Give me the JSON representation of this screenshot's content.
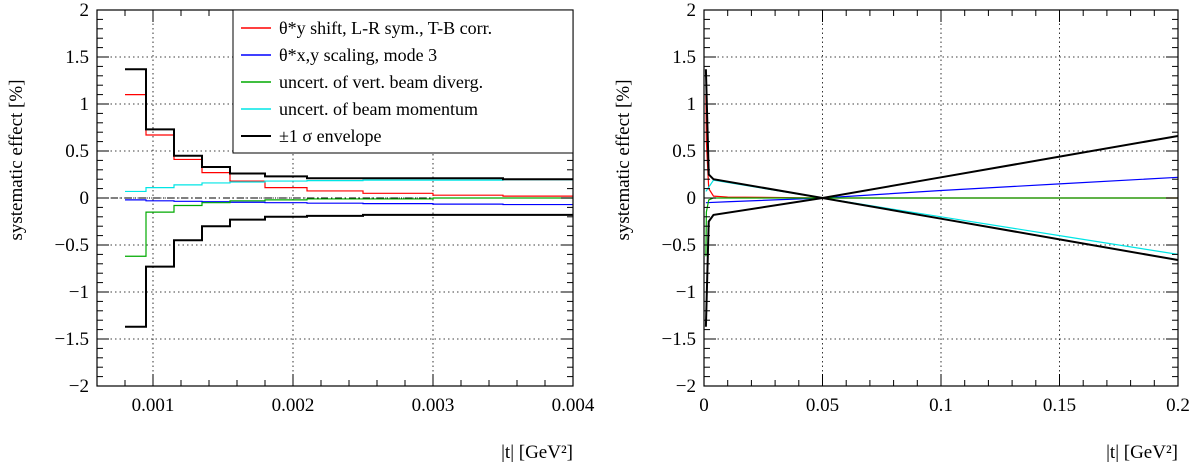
{
  "chart_data": [
    {
      "type": "line",
      "step": true,
      "grid": true,
      "ylabel": "systematic effect    [%]",
      "xlabel": "|t|    [GeV²]",
      "xlim": [
        0.0006,
        0.004
      ],
      "ylim": [
        -2,
        2
      ],
      "xticks": [
        "0.001",
        "0.002",
        "0.003",
        "0.004"
      ],
      "yticks": [
        "−2",
        "−1.5",
        "−1",
        "−0.5",
        "0",
        "0.5",
        "1",
        "1.5",
        "2"
      ],
      "legend_position": "top-right",
      "series": [
        {
          "name": "θ*y shift, L-R sym., T-B corr.",
          "color": "#ff0000",
          "x": [
            0.0008,
            0.00095,
            0.00115,
            0.00135,
            0.00155,
            0.0018,
            0.0021,
            0.0025,
            0.003,
            0.0035,
            0.004
          ],
          "y": [
            1.1,
            0.67,
            0.41,
            0.27,
            0.18,
            0.11,
            0.075,
            0.05,
            0.03,
            0.02,
            0.02
          ]
        },
        {
          "name": "θ*x,y scaling, mode 3",
          "color": "#0000ff",
          "x": [
            0.0008,
            0.00095,
            0.00115,
            0.00135,
            0.00155,
            0.0018,
            0.0021,
            0.0025,
            0.003,
            0.0035,
            0.004
          ],
          "y": [
            -0.02,
            -0.03,
            -0.035,
            -0.04,
            -0.045,
            -0.05,
            -0.055,
            -0.06,
            -0.065,
            -0.07,
            -0.07
          ]
        },
        {
          "name": "uncert. of vert. beam diverg.",
          "color": "#00aa00",
          "x": [
            0.0008,
            0.00095,
            0.00115,
            0.00135,
            0.00155,
            0.0018,
            0.0021,
            0.0025,
            0.003,
            0.0035,
            0.004
          ],
          "y": [
            -0.62,
            -0.15,
            -0.08,
            -0.05,
            -0.03,
            -0.02,
            -0.01,
            -0.01,
            0.0,
            0.0,
            0.0
          ]
        },
        {
          "name": "uncert. of beam momentum",
          "color": "#00e5e5",
          "x": [
            0.0008,
            0.00095,
            0.00115,
            0.00135,
            0.00155,
            0.0018,
            0.0021,
            0.0025,
            0.003,
            0.0035,
            0.004
          ],
          "y": [
            0.07,
            0.11,
            0.14,
            0.16,
            0.17,
            0.18,
            0.185,
            0.19,
            0.19,
            0.195,
            0.195
          ]
        },
        {
          "name": "±1 σ envelope",
          "color": "#000000",
          "x": [
            0.0008,
            0.00095,
            0.00115,
            0.00135,
            0.00155,
            0.0018,
            0.0021,
            0.0025,
            0.003,
            0.0035,
            0.004
          ],
          "y": [
            1.37,
            0.73,
            0.45,
            0.33,
            0.26,
            0.23,
            0.21,
            0.21,
            0.21,
            0.2,
            0.2
          ],
          "y_lower": [
            -1.37,
            -0.73,
            -0.45,
            -0.3,
            -0.23,
            -0.2,
            -0.19,
            -0.18,
            -0.18,
            -0.18,
            -0.18
          ]
        }
      ]
    },
    {
      "type": "line",
      "grid": true,
      "ylabel": "systematic effect    [%]",
      "xlabel": "|t|    [GeV²]",
      "xlim": [
        0,
        0.2
      ],
      "ylim": [
        -2,
        2
      ],
      "xticks": [
        "0",
        "0.05",
        "0.1",
        "0.15",
        "0.2"
      ],
      "yticks": [
        "−2",
        "−1.5",
        "−1",
        "−0.5",
        "0",
        "0.5",
        "1",
        "1.5",
        "2"
      ],
      "series": [
        {
          "color": "#ff0000",
          "x": [
            0.0008,
            0.001,
            0.002,
            0.004,
            0.01,
            0.05,
            0.1,
            0.15,
            0.2
          ],
          "y": [
            1.1,
            0.6,
            0.1,
            0.02,
            0.01,
            0.0,
            0.0,
            0.0,
            0.0
          ]
        },
        {
          "color": "#0000ff",
          "x": [
            0.0008,
            0.01,
            0.05,
            0.1,
            0.15,
            0.2
          ],
          "y": [
            -0.05,
            -0.04,
            0.0,
            0.08,
            0.15,
            0.22
          ]
        },
        {
          "color": "#00aa00",
          "x": [
            0.0008,
            0.001,
            0.002,
            0.004,
            0.01,
            0.05,
            0.1,
            0.15,
            0.2
          ],
          "y": [
            -0.62,
            -0.15,
            -0.02,
            0.0,
            0.0,
            0.0,
            0.0,
            0.0,
            0.0
          ]
        },
        {
          "color": "#00e5e5",
          "x": [
            0.0008,
            0.004,
            0.05,
            0.1,
            0.15,
            0.2
          ],
          "y": [
            0.07,
            0.19,
            0.0,
            -0.2,
            -0.4,
            -0.6
          ]
        },
        {
          "color": "#000000",
          "x": [
            0.0008,
            0.002,
            0.004,
            0.05,
            0.1,
            0.15,
            0.2
          ],
          "y": [
            1.37,
            0.25,
            0.2,
            0.0,
            0.22,
            0.44,
            0.66
          ],
          "y_lower": [
            -1.37,
            -0.25,
            -0.18,
            0.0,
            -0.22,
            -0.44,
            -0.66
          ]
        }
      ]
    }
  ]
}
